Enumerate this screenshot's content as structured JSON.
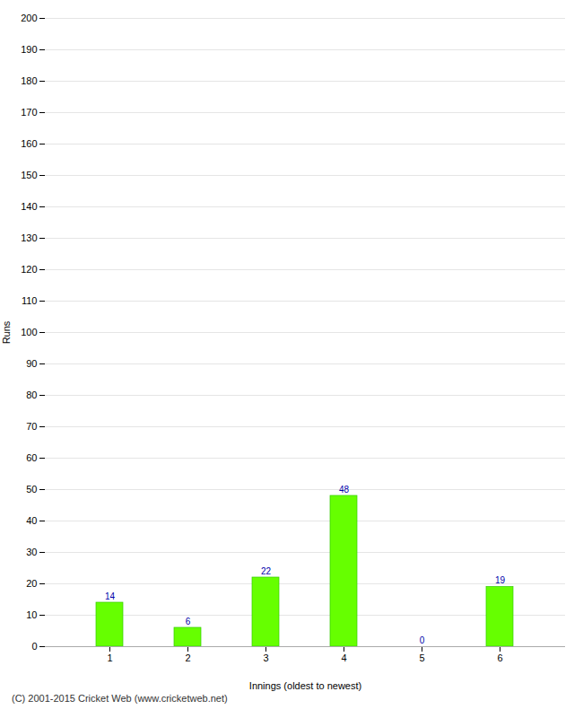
{
  "chart_data": {
    "type": "bar",
    "categories": [
      "1",
      "2",
      "3",
      "4",
      "5",
      "6"
    ],
    "values": [
      14,
      6,
      22,
      48,
      0,
      19
    ],
    "color": "#66ff00",
    "xlabel": "Innings (oldest to newest)",
    "ylabel": "Runs",
    "ylim": [
      0,
      200
    ],
    "yticks": [
      0,
      10,
      20,
      30,
      40,
      50,
      60,
      70,
      80,
      90,
      100,
      110,
      120,
      130,
      140,
      150,
      160,
      170,
      180,
      190,
      200
    ],
    "grid": true,
    "data_labels": true,
    "footer": "(C) 2001-2015 Cricket Web (www.cricketweb.net)"
  }
}
